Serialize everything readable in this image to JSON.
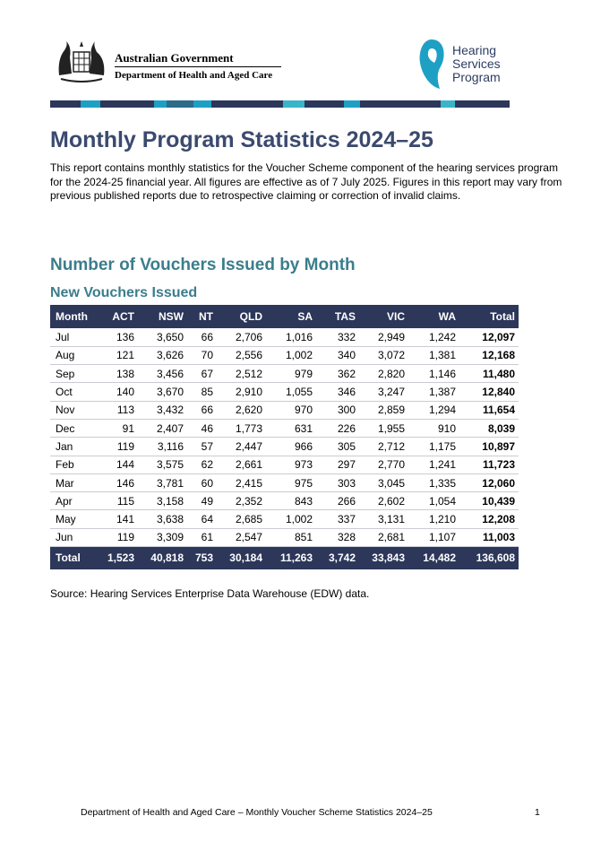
{
  "header": {
    "government": "Australian Government",
    "department": "Department of Health and Aged Care",
    "program_logo": [
      "Hearing",
      "Services",
      "Program"
    ]
  },
  "title": "Monthly Program Statistics 2024–25",
  "intro": "This report contains monthly statistics for the Voucher Scheme component of the hearing services program for the 2024-25 financial year. All figures are effective as of 7 July 2025. Figures in this report may vary from previous published reports due to retrospective claiming or correction of invalid claims.",
  "section_heading": "Number of Vouchers Issued by Month",
  "subsection_heading": "New Vouchers Issued",
  "table": {
    "columns": [
      "Month",
      "ACT",
      "NSW",
      "NT",
      "QLD",
      "SA",
      "TAS",
      "VIC",
      "WA",
      "Total"
    ],
    "rows": [
      [
        "Jul",
        "136",
        "3,650",
        "66",
        "2,706",
        "1,016",
        "332",
        "2,949",
        "1,242",
        "12,097"
      ],
      [
        "Aug",
        "121",
        "3,626",
        "70",
        "2,556",
        "1,002",
        "340",
        "3,072",
        "1,381",
        "12,168"
      ],
      [
        "Sep",
        "138",
        "3,456",
        "67",
        "2,512",
        "979",
        "362",
        "2,820",
        "1,146",
        "11,480"
      ],
      [
        "Oct",
        "140",
        "3,670",
        "85",
        "2,910",
        "1,055",
        "346",
        "3,247",
        "1,387",
        "12,840"
      ],
      [
        "Nov",
        "113",
        "3,432",
        "66",
        "2,620",
        "970",
        "300",
        "2,859",
        "1,294",
        "11,654"
      ],
      [
        "Dec",
        "91",
        "2,407",
        "46",
        "1,773",
        "631",
        "226",
        "1,955",
        "910",
        "8,039"
      ],
      [
        "Jan",
        "119",
        "3,116",
        "57",
        "2,447",
        "966",
        "305",
        "2,712",
        "1,175",
        "10,897"
      ],
      [
        "Feb",
        "144",
        "3,575",
        "62",
        "2,661",
        "973",
        "297",
        "2,770",
        "1,241",
        "11,723"
      ],
      [
        "Mar",
        "146",
        "3,781",
        "60",
        "2,415",
        "975",
        "303",
        "3,045",
        "1,335",
        "12,060"
      ],
      [
        "Apr",
        "115",
        "3,158",
        "49",
        "2,352",
        "843",
        "266",
        "2,602",
        "1,054",
        "10,439"
      ],
      [
        "May",
        "141",
        "3,638",
        "64",
        "2,685",
        "1,002",
        "337",
        "3,131",
        "1,210",
        "12,208"
      ],
      [
        "Jun",
        "119",
        "3,309",
        "61",
        "2,547",
        "851",
        "328",
        "2,681",
        "1,107",
        "11,003"
      ]
    ],
    "total": [
      "Total",
      "1,523",
      "40,818",
      "753",
      "30,184",
      "11,263",
      "3,742",
      "33,843",
      "14,482",
      "136,608"
    ]
  },
  "source": "Source: Hearing Services Enterprise Data Warehouse (EDW) data.",
  "footer": {
    "text": "Department of Health and Aged Care – Monthly Voucher Scheme Statistics 2024–25",
    "page": "1"
  }
}
